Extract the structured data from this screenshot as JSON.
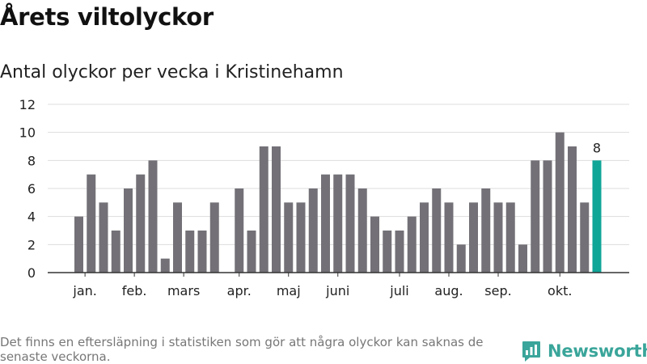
{
  "title": "Årets viltolyckor",
  "subtitle": "Antal olyckor per vecka i Kristinehamn",
  "footnote": "Det finns en eftersläpning i statistiken som gör att några olyckor kan saknas de senaste veckorna.",
  "brand": "Newsworthy",
  "colors": {
    "bar": "#737177",
    "highlight": "#0fa597",
    "grid": "#dddddd",
    "axis": "#333333",
    "brand": "#3aa59a"
  },
  "chart_data": {
    "type": "bar",
    "ylim": [
      0,
      12
    ],
    "yticks": [
      0,
      2,
      4,
      6,
      8,
      10,
      12
    ],
    "grid": true,
    "values": [
      4,
      7,
      5,
      3,
      6,
      7,
      8,
      1,
      5,
      3,
      3,
      5,
      0,
      6,
      3,
      9,
      9,
      5,
      5,
      6,
      7,
      7,
      7,
      6,
      4,
      3,
      3,
      4,
      5,
      6,
      5,
      2,
      5,
      6,
      5,
      5,
      2,
      8,
      8,
      10,
      9,
      5,
      8
    ],
    "highlight_index": 42,
    "highlight_label": "8",
    "month_labels": [
      {
        "label": "jan.",
        "bar": 0.5
      },
      {
        "label": "feb.",
        "bar": 4.5
      },
      {
        "label": "mars",
        "bar": 8.5
      },
      {
        "label": "apr.",
        "bar": 13
      },
      {
        "label": "maj",
        "bar": 17
      },
      {
        "label": "juni",
        "bar": 21
      },
      {
        "label": "juli",
        "bar": 26
      },
      {
        "label": "aug.",
        "bar": 30
      },
      {
        "label": "sep.",
        "bar": 34
      },
      {
        "label": "okt.",
        "bar": 39
      }
    ]
  }
}
